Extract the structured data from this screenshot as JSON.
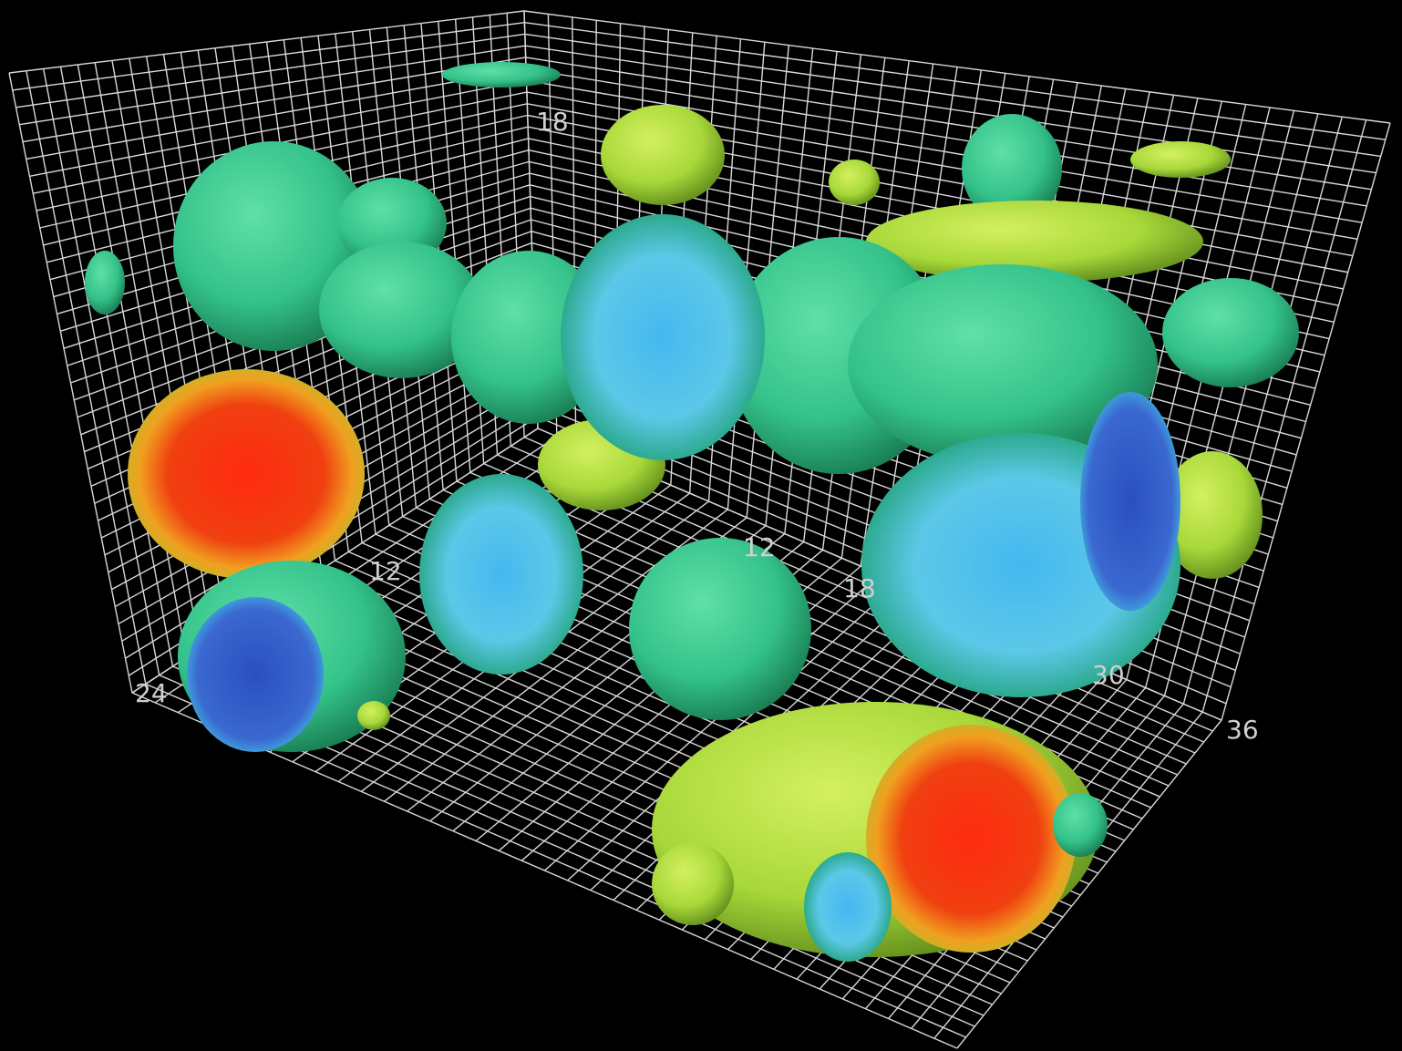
{
  "axis_labels": [
    "18",
    "12",
    "12",
    "18",
    "24",
    "30",
    "36"
  ]
}
